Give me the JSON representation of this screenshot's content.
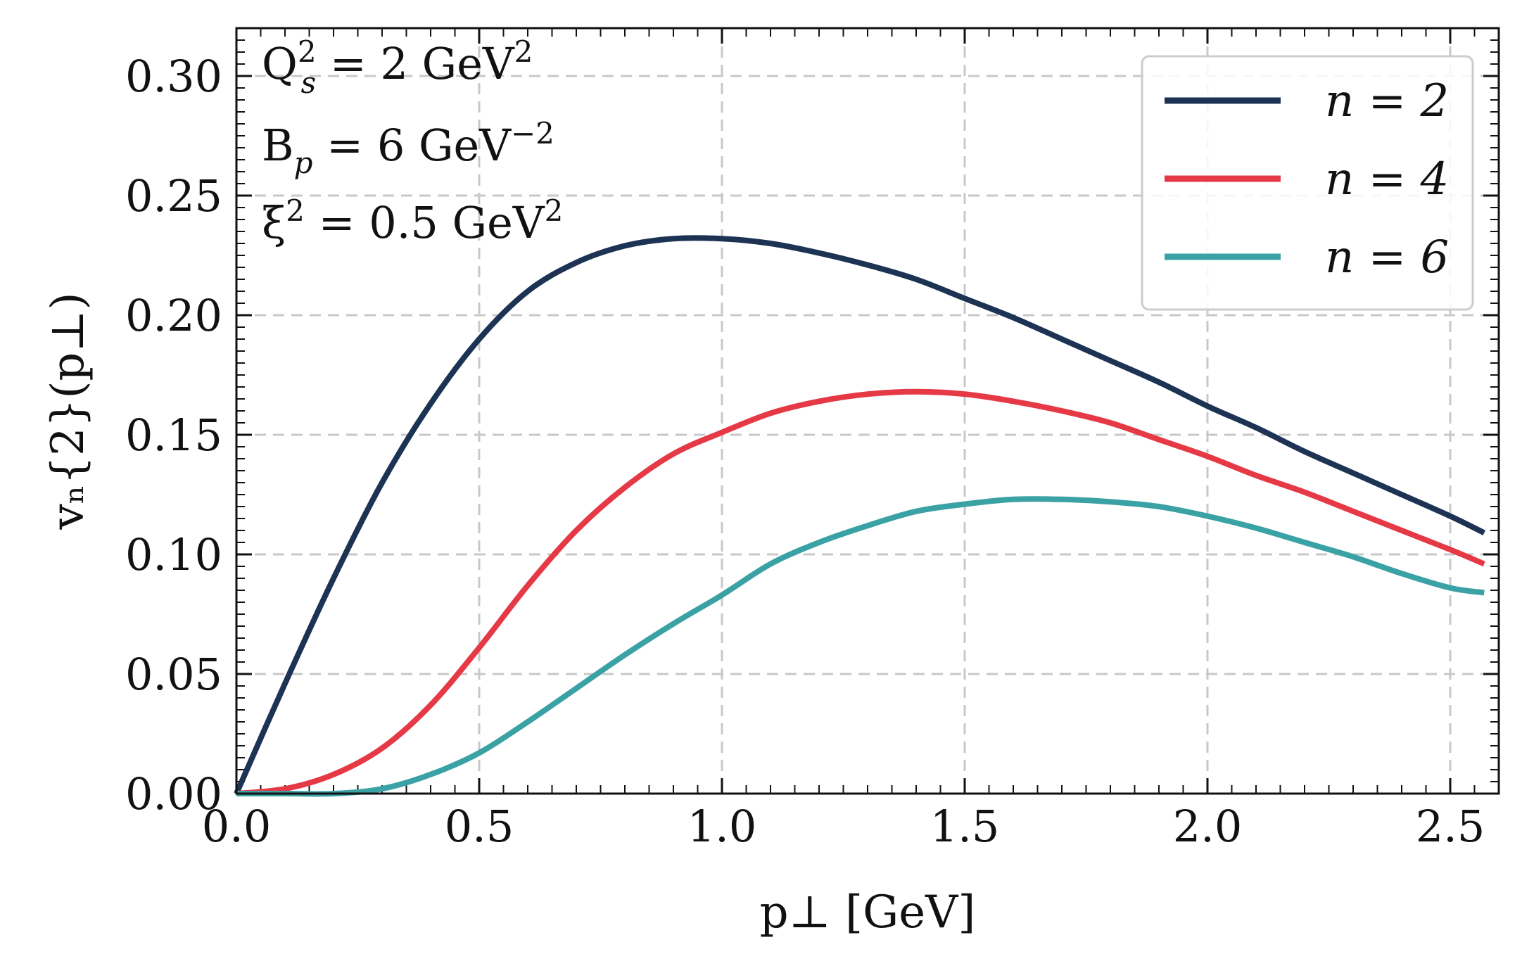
{
  "chart_data": {
    "type": "line",
    "title": "",
    "xlabel": "p⊥  [GeV]",
    "ylabel": "vₙ{2}(p⊥)",
    "xlim": [
      0.0,
      2.6
    ],
    "ylim": [
      0.0,
      0.32
    ],
    "xticks": [
      0.0,
      0.5,
      1.0,
      1.5,
      2.0,
      2.5
    ],
    "xtick_labels": [
      "0.0",
      "0.5",
      "1.0",
      "1.5",
      "2.0",
      "2.5"
    ],
    "yticks": [
      0.0,
      0.05,
      0.1,
      0.15,
      0.2,
      0.25,
      0.3
    ],
    "ytick_labels": [
      "0.00",
      "0.05",
      "0.10",
      "0.15",
      "0.20",
      "0.25",
      "0.30"
    ],
    "grid": true,
    "legend_position": "top-right",
    "annotations": [
      "Q²ₛ = 2 GeV²",
      "Bₚ = 6 GeV⁻²",
      "ξ² = 0.5 GeV²"
    ],
    "x": [
      0.0,
      0.1,
      0.2,
      0.3,
      0.4,
      0.5,
      0.6,
      0.7,
      0.8,
      0.9,
      1.0,
      1.1,
      1.2,
      1.3,
      1.4,
      1.5,
      1.6,
      1.7,
      1.8,
      1.9,
      2.0,
      2.1,
      2.2,
      2.3,
      2.4,
      2.5,
      2.57
    ],
    "series": [
      {
        "name": "n = 2",
        "color": "#1d3354",
        "values": [
          0.0,
          0.046,
          0.09,
          0.13,
          0.163,
          0.19,
          0.21,
          0.222,
          0.229,
          0.232,
          0.232,
          0.23,
          0.226,
          0.221,
          0.215,
          0.207,
          0.199,
          0.19,
          0.181,
          0.172,
          0.162,
          0.153,
          0.143,
          0.134,
          0.125,
          0.116,
          0.109
        ]
      },
      {
        "name": "n = 4",
        "color": "#e63946",
        "values": [
          0.0,
          0.002,
          0.008,
          0.019,
          0.037,
          0.061,
          0.087,
          0.11,
          0.128,
          0.142,
          0.151,
          0.159,
          0.164,
          0.167,
          0.168,
          0.167,
          0.164,
          0.16,
          0.155,
          0.148,
          0.141,
          0.133,
          0.126,
          0.118,
          0.11,
          0.102,
          0.096
        ]
      },
      {
        "name": "n = 6",
        "color": "#3aa1a5",
        "values": [
          0.0,
          0.0,
          0.0,
          0.002,
          0.008,
          0.017,
          0.03,
          0.044,
          0.058,
          0.071,
          0.083,
          0.096,
          0.105,
          0.112,
          0.118,
          0.121,
          0.123,
          0.123,
          0.122,
          0.12,
          0.116,
          0.111,
          0.105,
          0.099,
          0.092,
          0.086,
          0.084
        ]
      }
    ]
  }
}
